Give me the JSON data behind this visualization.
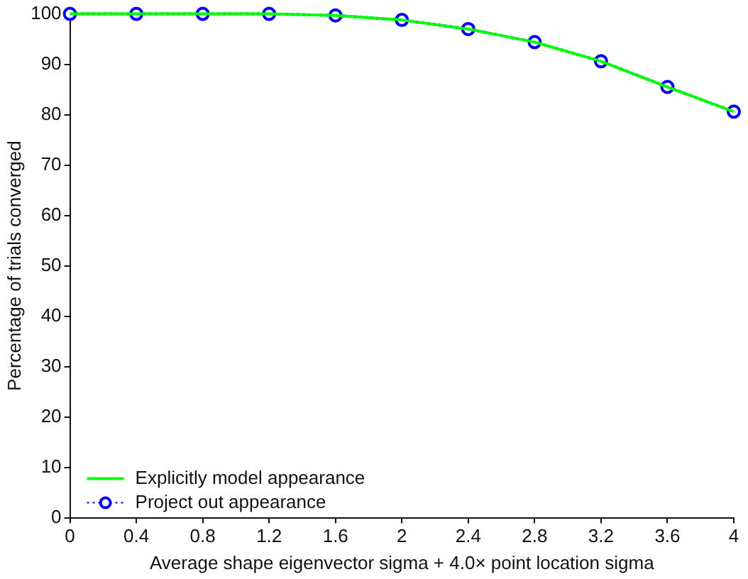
{
  "chart_data": {
    "type": "line",
    "xlabel": "Average shape eigenvector sigma + 4.0× point location sigma",
    "ylabel": "Percentage of trials converged",
    "x": [
      0,
      0.4,
      0.8,
      1.2,
      1.6,
      2,
      2.4,
      2.8,
      3.2,
      3.6,
      4
    ],
    "series": [
      {
        "name": "Explicitly model appearance",
        "color": "#00ff00",
        "marker": "none",
        "line_style": "solid",
        "values": [
          100,
          100,
          100,
          100,
          99.7,
          98.8,
          97,
          94.4,
          90.6,
          85.5,
          80.6
        ]
      },
      {
        "name": "Project out appearance",
        "color": "#0000ff",
        "marker": "circle",
        "line_style": "dotted",
        "values": [
          100,
          100,
          100,
          100,
          99.7,
          98.8,
          97,
          94.4,
          90.6,
          85.5,
          80.6
        ]
      }
    ],
    "xlim": [
      0,
      4
    ],
    "xticks": [
      0,
      0.4,
      0.8,
      1.2,
      1.6,
      2,
      2.4,
      2.8,
      3.2,
      3.6,
      4
    ],
    "ylim": [
      0,
      100
    ],
    "yticks": [
      0,
      10,
      20,
      30,
      40,
      50,
      60,
      70,
      80,
      90,
      100
    ],
    "grid": false,
    "legend": "bottom left"
  }
}
